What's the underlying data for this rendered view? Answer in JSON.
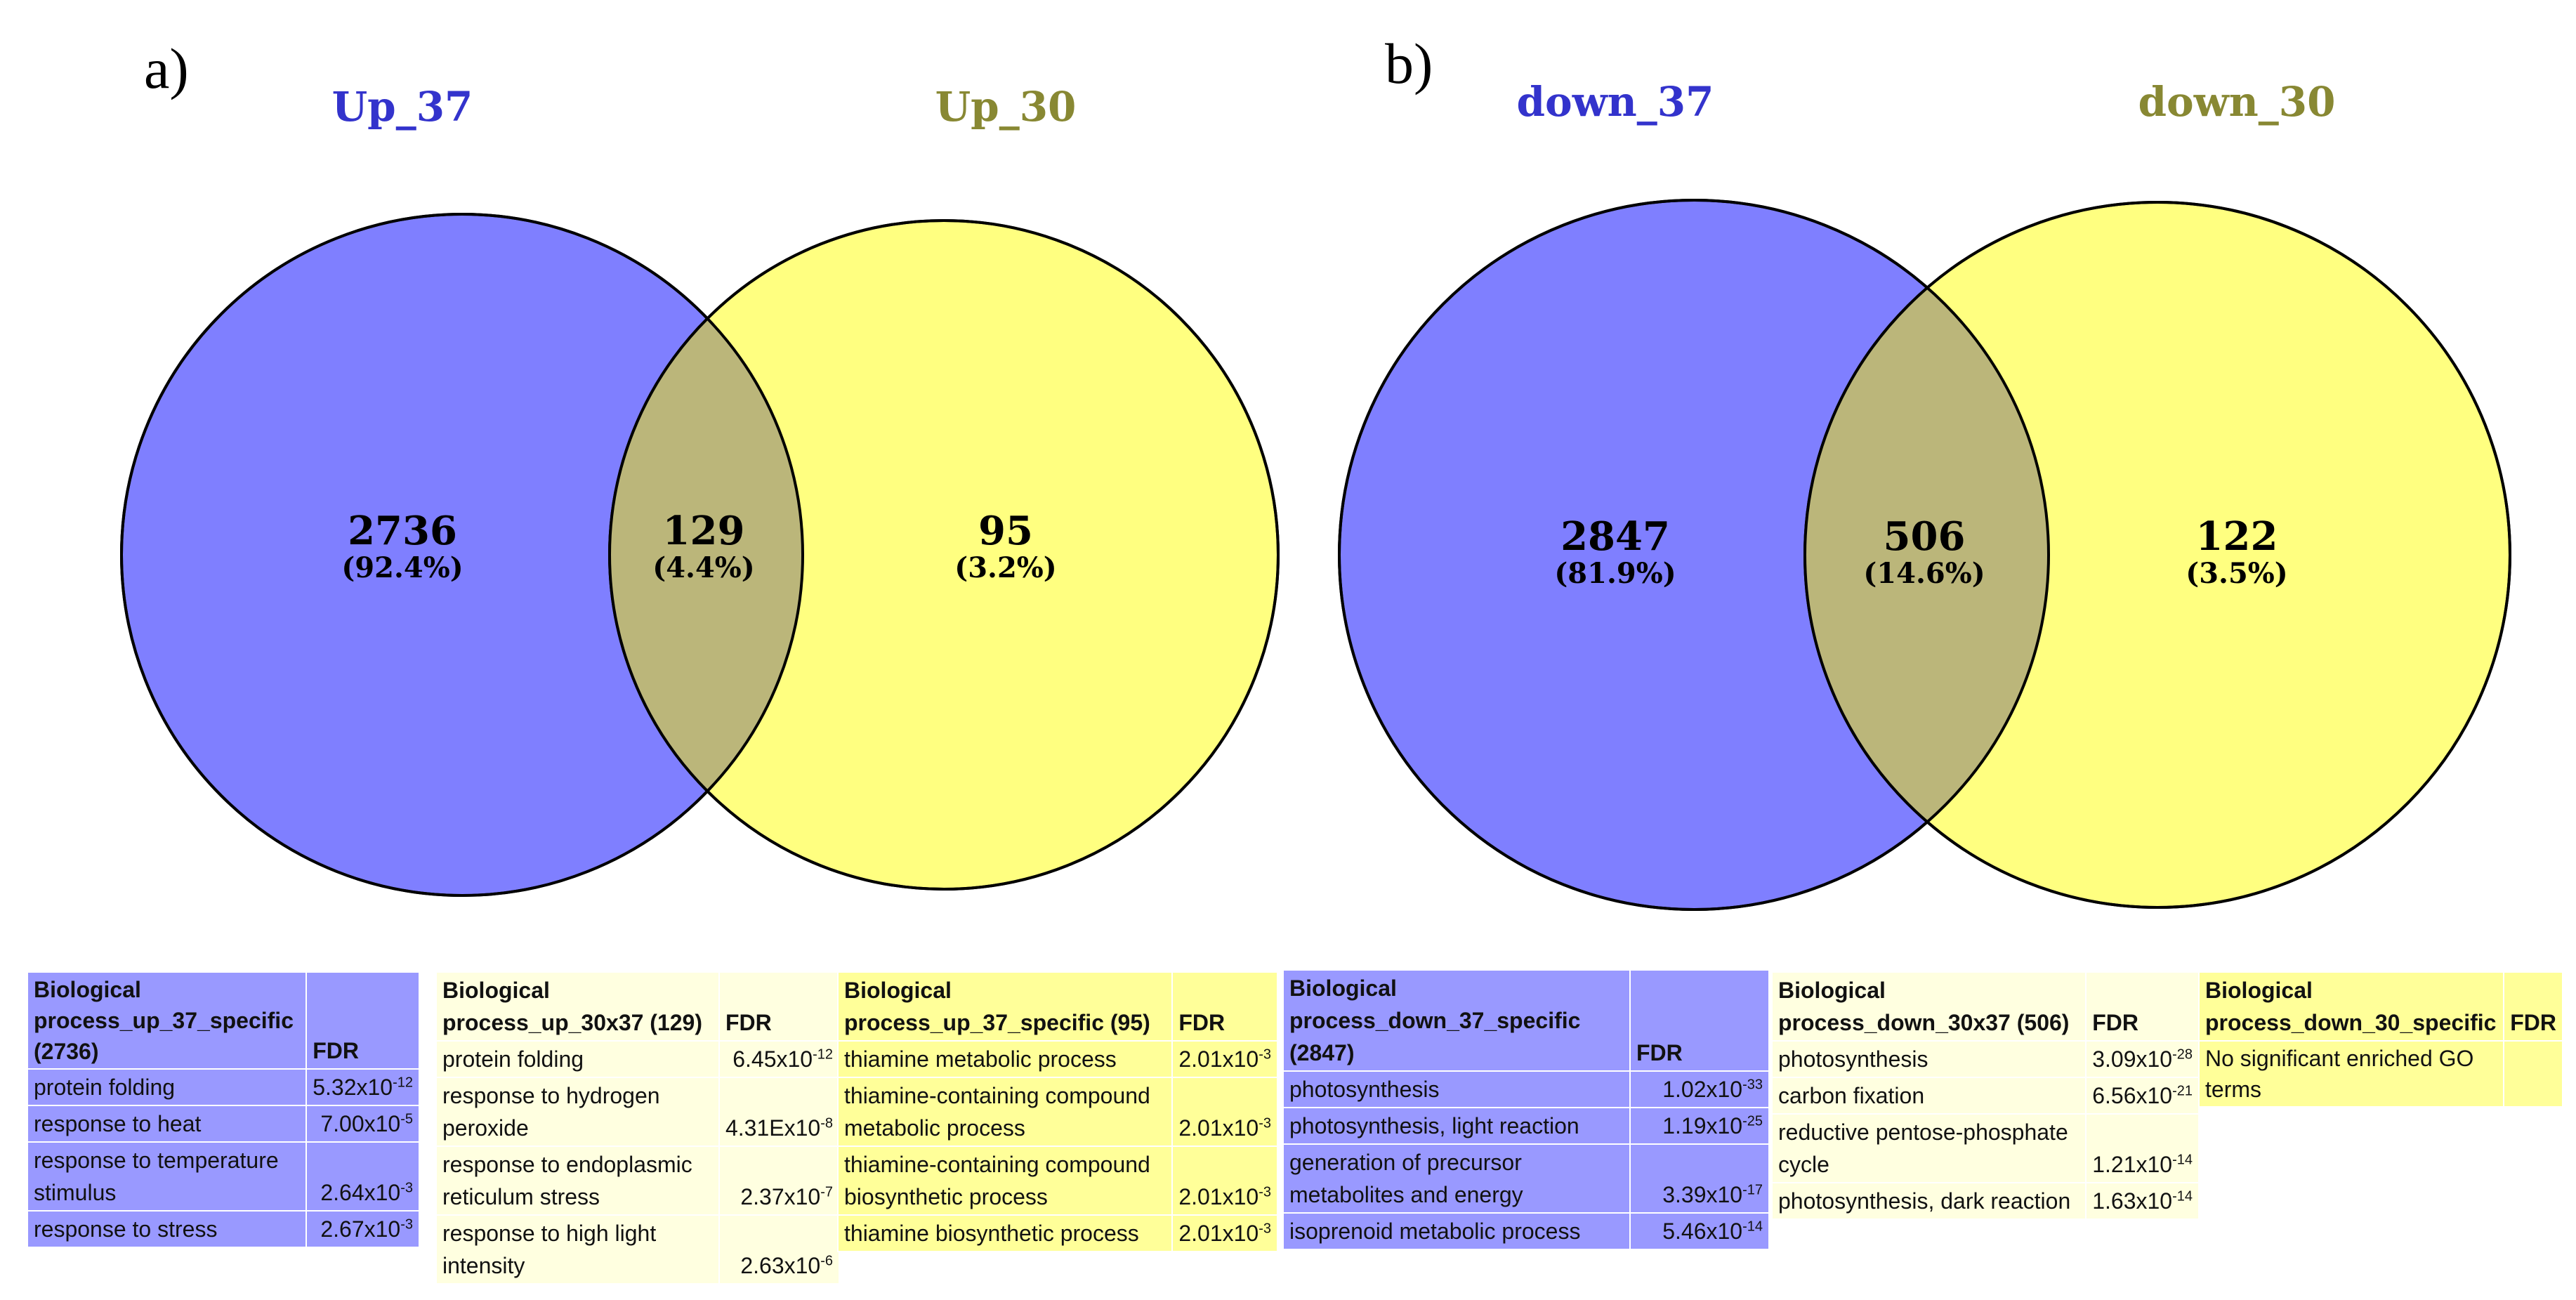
{
  "panels": {
    "a": {
      "letter": "a)",
      "set_left": {
        "name": "Up_37",
        "count": "2736",
        "percent": "(92.4%)",
        "color": "#7f7fff"
      },
      "set_right": {
        "name": "Up_30",
        "count": "95",
        "percent": "(3.2%)",
        "color": "#ffff80"
      },
      "overlap": {
        "count": "129",
        "percent": "(4.4%)",
        "color": "#bbb67a"
      },
      "label_colors": {
        "left": "#3333cc",
        "right": "#888833"
      }
    },
    "b": {
      "letter": "b)",
      "set_left": {
        "name": "down_37",
        "count": "2847",
        "percent": "(81.9%)",
        "color": "#7f7fff"
      },
      "set_right": {
        "name": "down_30",
        "count": "122",
        "percent": "(3.5%)",
        "color": "#ffff80"
      },
      "overlap": {
        "count": "506",
        "percent": "(14.6%)",
        "color": "#bbb67a"
      },
      "label_colors": {
        "left": "#3333cc",
        "right": "#888833"
      }
    }
  },
  "tables": {
    "up_37_specific": {
      "header": "Biological process_up_37_specific (2736)",
      "fdr_header": "FDR",
      "rows": [
        {
          "term": "protein folding",
          "mantissa": "5.32x10",
          "exp": "-12"
        },
        {
          "term": "response to heat",
          "mantissa": "7.00x10",
          "exp": "-5"
        },
        {
          "term": "response to temperature stimulus",
          "mantissa": "2.64x10",
          "exp": "-3"
        },
        {
          "term": "response to stress",
          "mantissa": "2.67x10",
          "exp": "-3"
        }
      ]
    },
    "up_30x37": {
      "header": "Biological process_up_30x37 (129)",
      "fdr_header": "FDR",
      "rows": [
        {
          "term": "protein folding",
          "mantissa": "6.45x10",
          "exp": "-12"
        },
        {
          "term": "response to hydrogen peroxide",
          "mantissa": "4.31Ex10",
          "exp": "-8"
        },
        {
          "term": "response to endoplasmic reticulum stress",
          "mantissa": "2.37x10",
          "exp": "-7"
        },
        {
          "term": "response to high light intensity",
          "mantissa": "2.63x10",
          "exp": "-6"
        }
      ]
    },
    "up_37_specific_95": {
      "header": "Biological process_up_37_specific (95)",
      "fdr_header": "FDR",
      "rows": [
        {
          "term": "thiamine metabolic process",
          "mantissa": "2.01x10",
          "exp": "-3"
        },
        {
          "term": "thiamine-containing compound metabolic process",
          "mantissa": "2.01x10",
          "exp": "-3"
        },
        {
          "term": "thiamine-containing compound biosynthetic process",
          "mantissa": "2.01x10",
          "exp": "-3"
        },
        {
          "term": "thiamine biosynthetic process",
          "mantissa": "2.01x10",
          "exp": "-3"
        }
      ]
    },
    "down_37_specific": {
      "header": "Biological process_down_37_specific (2847)",
      "fdr_header": "FDR",
      "rows": [
        {
          "term": "photosynthesis",
          "mantissa": "1.02x10",
          "exp": "-33"
        },
        {
          "term": "photosynthesis, light reaction",
          "mantissa": "1.19x10",
          "exp": "-25"
        },
        {
          "term": "generation of precursor metabolites and energy",
          "mantissa": "3.39x10",
          "exp": "-17"
        },
        {
          "term": "isoprenoid metabolic process",
          "mantissa": "5.46x10",
          "exp": "-14"
        }
      ]
    },
    "down_30x37": {
      "header": "Biological process_down_30x37 (506)",
      "fdr_header": "FDR",
      "rows": [
        {
          "term": "photosynthesis",
          "mantissa": "3.09x10",
          "exp": "-28"
        },
        {
          "term": "carbon fixation",
          "mantissa": "6.56x10",
          "exp": "-21"
        },
        {
          "term": "reductive pentose-phosphate cycle",
          "mantissa": "1.21x10",
          "exp": "-14"
        },
        {
          "term": "photosynthesis, dark reaction",
          "mantissa": "1.63x10",
          "exp": "-14"
        }
      ]
    },
    "down_30_specific": {
      "header": "Biological process_down_30_specific",
      "fdr_header": "FDR",
      "note": "No significant enriched GO terms"
    }
  }
}
